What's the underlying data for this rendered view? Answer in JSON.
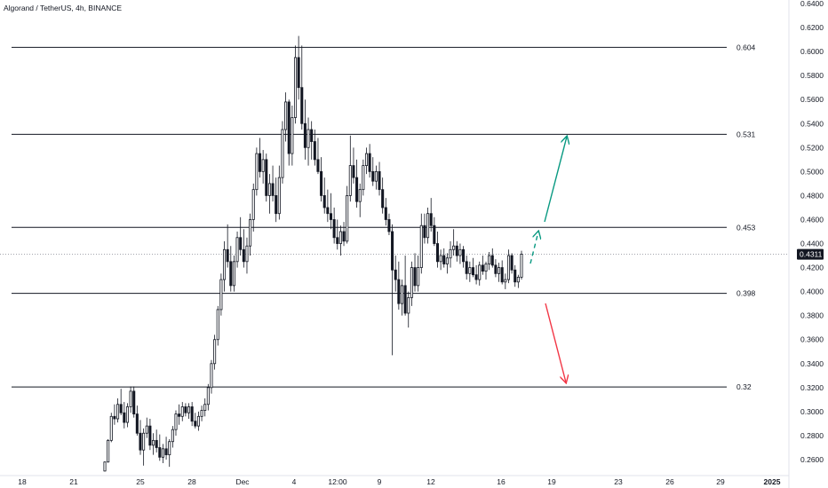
{
  "chart_data": {
    "type": "candlestick",
    "title": "Algorand / TetherUS, 4h, BINANCE",
    "y_axis": {
      "range": [
        0.252,
        0.642
      ],
      "ticks": [
        "0.6400",
        "0.6200",
        "0.6000",
        "0.5800",
        "0.5600",
        "0.5400",
        "0.5200",
        "0.5000",
        "0.4800",
        "0.4600",
        "0.4400",
        "0.4200",
        "0.4000",
        "0.3800",
        "0.3600",
        "0.3400",
        "0.3200",
        "0.3000",
        "0.2800",
        "0.2600"
      ],
      "last_price": "0.4311"
    },
    "x_axis": {
      "ticks": [
        "18",
        "21",
        "25",
        "28",
        "Dec",
        "4",
        "12:00",
        "9",
        "12",
        "16",
        "19",
        "23",
        "26",
        "29",
        "2025"
      ]
    },
    "levels": [
      {
        "label": "0.604",
        "value": 0.6035
      },
      {
        "label": "0.531",
        "value": 0.531
      },
      {
        "label": "0.453",
        "value": 0.4535
      },
      {
        "label": "0.398",
        "value": 0.3985
      },
      {
        "label": "0.32",
        "value": 0.3205
      }
    ],
    "candles": [
      [
        0.2505,
        0.2585,
        0.25,
        0.258
      ],
      [
        0.258,
        0.277,
        0.2575,
        0.276
      ],
      [
        0.276,
        0.299,
        0.2745,
        0.296
      ],
      [
        0.296,
        0.306,
        0.289,
        0.294
      ],
      [
        0.294,
        0.311,
        0.291,
        0.306
      ],
      [
        0.306,
        0.319,
        0.297,
        0.299
      ],
      [
        0.299,
        0.308,
        0.286,
        0.291
      ],
      [
        0.291,
        0.307,
        0.287,
        0.304
      ],
      [
        0.304,
        0.321,
        0.299,
        0.317
      ],
      [
        0.317,
        0.321,
        0.295,
        0.298
      ],
      [
        0.298,
        0.305,
        0.28,
        0.282
      ],
      [
        0.282,
        0.293,
        0.264,
        0.268
      ],
      [
        0.268,
        0.286,
        0.255,
        0.282
      ],
      [
        0.282,
        0.295,
        0.278,
        0.288
      ],
      [
        0.288,
        0.294,
        0.268,
        0.272
      ],
      [
        0.272,
        0.282,
        0.264,
        0.276
      ],
      [
        0.276,
        0.285,
        0.266,
        0.27
      ],
      [
        0.27,
        0.281,
        0.259,
        0.262
      ],
      [
        0.262,
        0.273,
        0.257,
        0.269
      ],
      [
        0.269,
        0.279,
        0.26,
        0.264
      ],
      [
        0.264,
        0.277,
        0.254,
        0.275
      ],
      [
        0.275,
        0.288,
        0.27,
        0.285
      ],
      [
        0.285,
        0.301,
        0.28,
        0.298
      ],
      [
        0.298,
        0.306,
        0.289,
        0.296
      ],
      [
        0.296,
        0.308,
        0.292,
        0.304
      ],
      [
        0.304,
        0.307,
        0.296,
        0.299
      ],
      [
        0.299,
        0.307,
        0.294,
        0.304
      ],
      [
        0.304,
        0.308,
        0.288,
        0.292
      ],
      [
        0.292,
        0.299,
        0.286,
        0.288
      ],
      [
        0.288,
        0.3,
        0.284,
        0.296
      ],
      [
        0.296,
        0.305,
        0.292,
        0.301
      ],
      [
        0.301,
        0.311,
        0.296,
        0.306
      ],
      [
        0.306,
        0.323,
        0.301,
        0.32
      ],
      [
        0.32,
        0.343,
        0.315,
        0.34
      ],
      [
        0.34,
        0.364,
        0.335,
        0.36
      ],
      [
        0.36,
        0.388,
        0.355,
        0.385
      ],
      [
        0.385,
        0.415,
        0.38,
        0.41
      ],
      [
        0.41,
        0.442,
        0.4,
        0.435
      ],
      [
        0.435,
        0.456,
        0.42,
        0.425
      ],
      [
        0.425,
        0.438,
        0.4,
        0.405
      ],
      [
        0.405,
        0.43,
        0.4,
        0.425
      ],
      [
        0.425,
        0.45,
        0.42,
        0.445
      ],
      [
        0.445,
        0.462,
        0.43,
        0.435
      ],
      [
        0.435,
        0.452,
        0.42,
        0.425
      ],
      [
        0.425,
        0.445,
        0.415,
        0.438
      ],
      [
        0.438,
        0.465,
        0.43,
        0.46
      ],
      [
        0.46,
        0.49,
        0.45,
        0.485
      ],
      [
        0.485,
        0.52,
        0.48,
        0.515
      ],
      [
        0.515,
        0.528,
        0.495,
        0.5
      ],
      [
        0.5,
        0.518,
        0.49,
        0.51
      ],
      [
        0.51,
        0.515,
        0.475,
        0.48
      ],
      [
        0.48,
        0.498,
        0.465,
        0.49
      ],
      [
        0.49,
        0.505,
        0.475,
        0.48
      ],
      [
        0.48,
        0.495,
        0.458,
        0.465
      ],
      [
        0.465,
        0.505,
        0.46,
        0.495
      ],
      [
        0.495,
        0.542,
        0.49,
        0.535
      ],
      [
        0.535,
        0.566,
        0.525,
        0.558
      ],
      [
        0.558,
        0.56,
        0.505,
        0.515
      ],
      [
        0.515,
        0.555,
        0.505,
        0.545
      ],
      [
        0.545,
        0.605,
        0.54,
        0.595
      ],
      [
        0.595,
        0.613,
        0.56,
        0.57
      ],
      [
        0.57,
        0.605,
        0.535,
        0.54
      ],
      [
        0.54,
        0.56,
        0.51,
        0.52
      ],
      [
        0.52,
        0.545,
        0.505,
        0.535
      ],
      [
        0.535,
        0.542,
        0.51,
        0.525
      ],
      [
        0.525,
        0.535,
        0.505,
        0.51
      ],
      [
        0.51,
        0.528,
        0.498,
        0.5
      ],
      [
        0.5,
        0.512,
        0.475,
        0.48
      ],
      [
        0.48,
        0.495,
        0.465,
        0.47
      ],
      [
        0.47,
        0.485,
        0.458,
        0.465
      ],
      [
        0.465,
        0.482,
        0.452,
        0.46
      ],
      [
        0.46,
        0.47,
        0.44,
        0.445
      ],
      [
        0.445,
        0.46,
        0.435,
        0.44
      ],
      [
        0.44,
        0.455,
        0.43,
        0.45
      ],
      [
        0.45,
        0.458,
        0.438,
        0.442
      ],
      [
        0.442,
        0.488,
        0.44,
        0.48
      ],
      [
        0.48,
        0.53,
        0.475,
        0.505
      ],
      [
        0.505,
        0.52,
        0.49,
        0.495
      ],
      [
        0.495,
        0.51,
        0.47,
        0.475
      ],
      [
        0.475,
        0.49,
        0.462,
        0.485
      ],
      [
        0.485,
        0.51,
        0.48,
        0.505
      ],
      [
        0.505,
        0.52,
        0.498,
        0.515
      ],
      [
        0.515,
        0.523,
        0.495,
        0.5
      ],
      [
        0.5,
        0.512,
        0.488,
        0.492
      ],
      [
        0.492,
        0.505,
        0.485,
        0.5
      ],
      [
        0.5,
        0.508,
        0.48,
        0.485
      ],
      [
        0.485,
        0.495,
        0.465,
        0.47
      ],
      [
        0.47,
        0.478,
        0.455,
        0.46
      ],
      [
        0.46,
        0.465,
        0.447,
        0.45
      ],
      [
        0.45,
        0.456,
        0.347,
        0.418
      ],
      [
        0.418,
        0.43,
        0.4,
        0.41
      ],
      [
        0.41,
        0.425,
        0.385,
        0.39
      ],
      [
        0.39,
        0.41,
        0.38,
        0.405
      ],
      [
        0.405,
        0.43,
        0.38,
        0.382
      ],
      [
        0.382,
        0.4,
        0.37,
        0.395
      ],
      [
        0.395,
        0.425,
        0.388,
        0.42
      ],
      [
        0.42,
        0.432,
        0.4,
        0.405
      ],
      [
        0.405,
        0.43,
        0.4,
        0.42
      ],
      [
        0.42,
        0.465,
        0.415,
        0.455
      ],
      [
        0.455,
        0.465,
        0.44,
        0.445
      ],
      [
        0.445,
        0.47,
        0.44,
        0.465
      ],
      [
        0.465,
        0.478,
        0.45,
        0.455
      ],
      [
        0.455,
        0.462,
        0.438,
        0.44
      ],
      [
        0.44,
        0.45,
        0.42,
        0.425
      ],
      [
        0.425,
        0.435,
        0.418,
        0.43
      ],
      [
        0.43,
        0.436,
        0.42,
        0.423
      ],
      [
        0.423,
        0.432,
        0.415,
        0.428
      ],
      [
        0.428,
        0.442,
        0.42,
        0.435
      ],
      [
        0.435,
        0.452,
        0.43,
        0.438
      ],
      [
        0.438,
        0.442,
        0.425,
        0.43
      ],
      [
        0.43,
        0.44,
        0.423,
        0.435
      ],
      [
        0.435,
        0.438,
        0.42,
        0.425
      ],
      [
        0.425,
        0.43,
        0.41,
        0.415
      ],
      [
        0.415,
        0.425,
        0.408,
        0.42
      ],
      [
        0.42,
        0.428,
        0.412,
        0.414
      ],
      [
        0.414,
        0.422,
        0.406,
        0.41
      ],
      [
        0.41,
        0.425,
        0.405,
        0.422
      ],
      [
        0.422,
        0.43,
        0.414,
        0.417
      ],
      [
        0.417,
        0.425,
        0.41,
        0.423
      ],
      [
        0.423,
        0.433,
        0.418,
        0.43
      ],
      [
        0.43,
        0.436,
        0.42,
        0.422
      ],
      [
        0.422,
        0.427,
        0.412,
        0.415
      ],
      [
        0.415,
        0.424,
        0.408,
        0.42
      ],
      [
        0.42,
        0.426,
        0.406,
        0.408
      ],
      [
        0.408,
        0.415,
        0.402,
        0.41
      ],
      [
        0.41,
        0.435,
        0.407,
        0.43
      ],
      [
        0.43,
        0.432,
        0.415,
        0.418
      ],
      [
        0.418,
        0.422,
        0.404,
        0.408
      ],
      [
        0.408,
        0.414,
        0.403,
        0.412
      ],
      [
        0.412,
        0.434,
        0.41,
        0.4311
      ]
    ],
    "grid": false,
    "colors": {
      "level_line": "#131722",
      "candle": "#131722",
      "last_price_tag": "#131722",
      "up_arrow": "#089981",
      "down_arrow": "#f23645",
      "projection_dashed": "#089981"
    }
  }
}
